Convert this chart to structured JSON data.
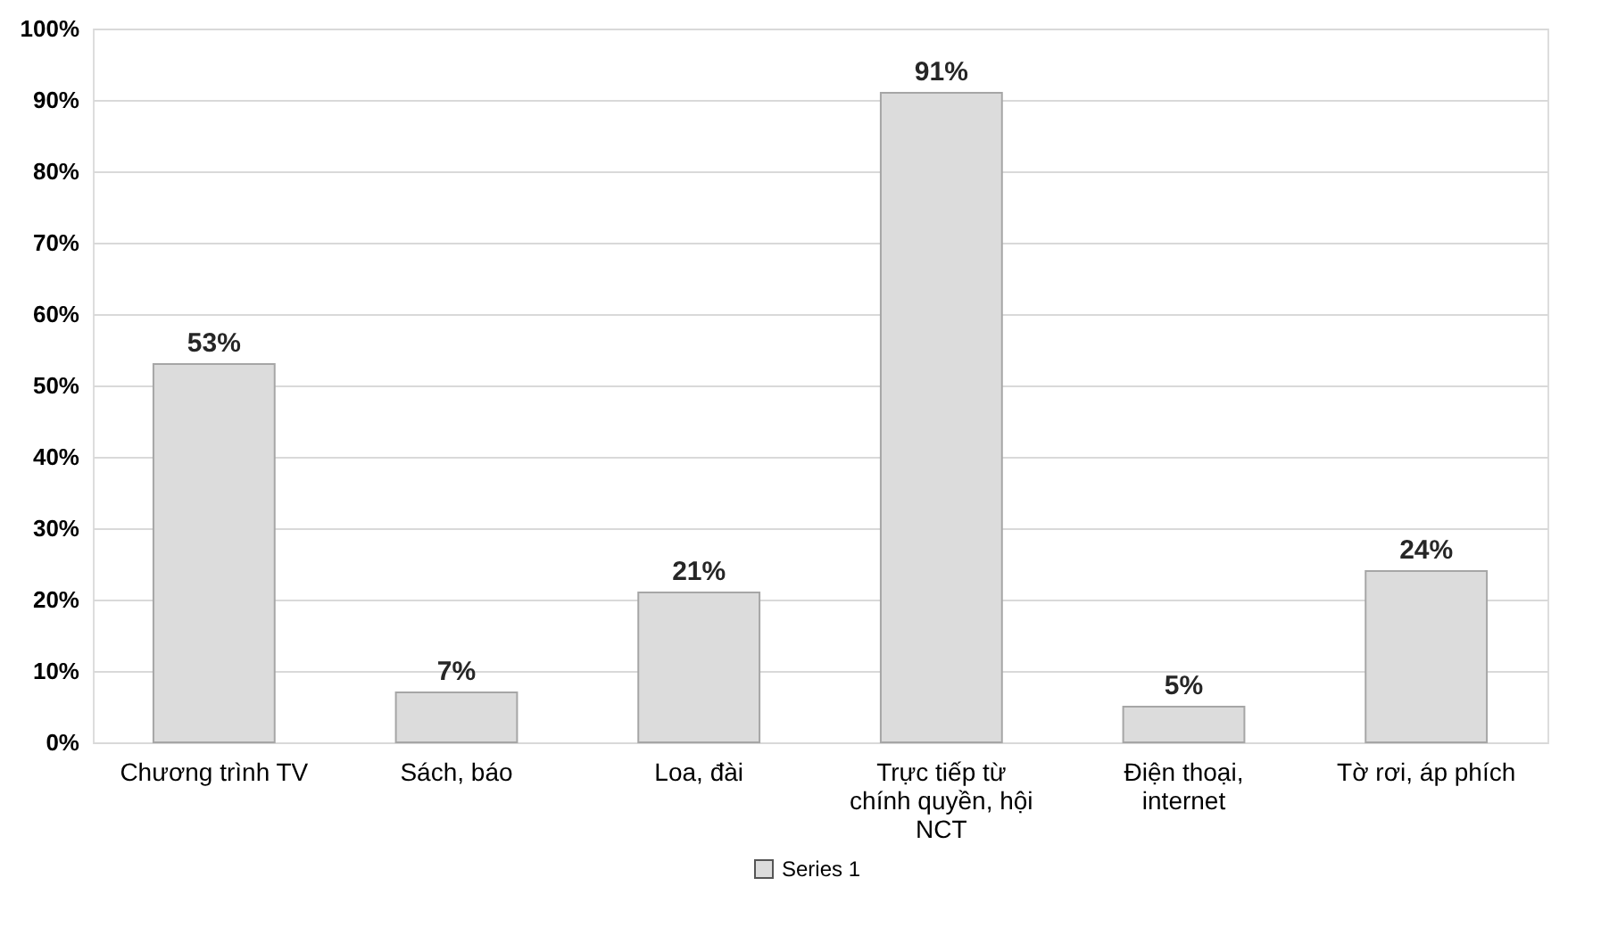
{
  "chart_data": {
    "type": "bar",
    "categories": [
      "Chương trình TV",
      "Sách, báo",
      "Loa, đài",
      "Trực tiếp từ chính quyền, hội NCT",
      "Điện thoại, internet",
      "Tờ rơi, áp phích"
    ],
    "series": [
      {
        "name": "Series 1",
        "color": "#dcdcdc",
        "values": [
          53,
          7,
          21,
          91,
          5,
          24
        ],
        "value_labels": [
          "53%",
          "7%",
          "21%",
          "91%",
          "5%",
          "24%"
        ]
      }
    ],
    "ylim": [
      0,
      100
    ],
    "yticks": [
      {
        "value": 0,
        "label": "0%"
      },
      {
        "value": 10,
        "label": "10%"
      },
      {
        "value": 20,
        "label": "20%"
      },
      {
        "value": 30,
        "label": "30%"
      },
      {
        "value": 40,
        "label": "40%"
      },
      {
        "value": 50,
        "label": "50%"
      },
      {
        "value": 60,
        "label": "60%"
      },
      {
        "value": 70,
        "label": "70%"
      },
      {
        "value": 80,
        "label": "80%"
      },
      {
        "value": 90,
        "label": "90%"
      },
      {
        "value": 100,
        "label": "100%"
      }
    ],
    "grid": "y",
    "legend": "bottom"
  }
}
